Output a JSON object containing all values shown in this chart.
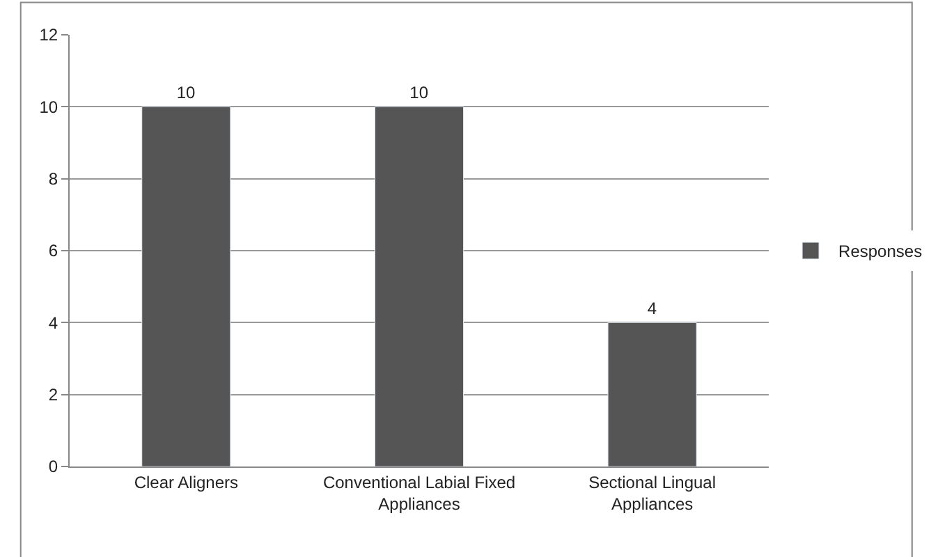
{
  "chart_data": {
    "type": "bar",
    "categories": [
      "Clear Aligners",
      "Conventional Labial Fixed Appliances",
      "Sectional Lingual Appliances"
    ],
    "series": [
      {
        "name": "Responses",
        "color": "#555555",
        "values": [
          10,
          10,
          4
        ]
      }
    ],
    "ylim": [
      0,
      12
    ],
    "yticks": [
      0,
      2,
      4,
      6,
      8,
      10,
      12
    ],
    "grid": "y",
    "legend": "right",
    "data_labels": true
  }
}
